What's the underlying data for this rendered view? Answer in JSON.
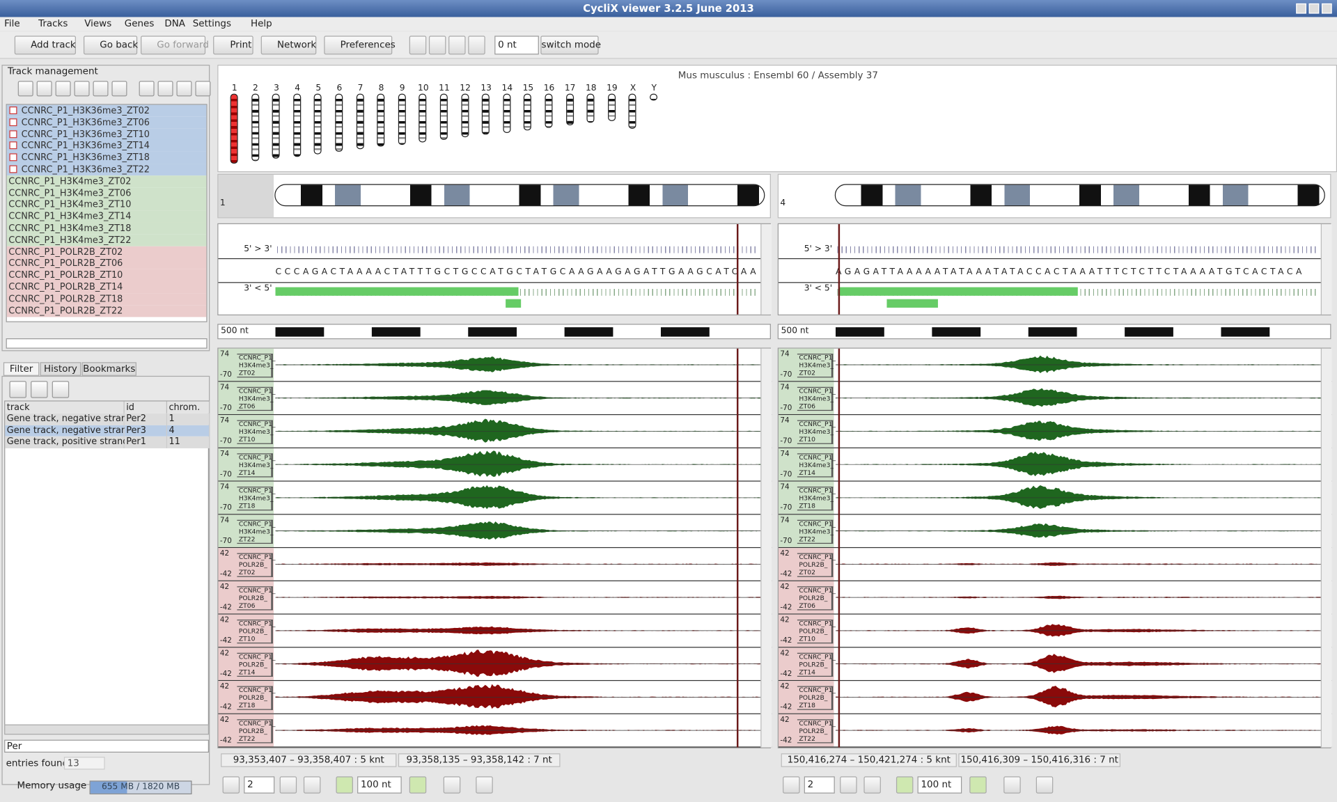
{
  "window": {
    "title": "CycliX viewer 3.2.5 June 2013"
  },
  "menu": [
    "File",
    "Tracks",
    "Views",
    "Genes",
    "DNA",
    "Settings",
    "Help"
  ],
  "toolbar": {
    "buttons": [
      "Add track",
      "Go back",
      "Go forward",
      "Print",
      "Network",
      "Preferences"
    ],
    "position": "0 nt",
    "mode": "switch mode"
  },
  "track_management": {
    "title": "Track management",
    "tracks": [
      "CCNRC_P1_H3K36me3_ZT02",
      "CCNRC_P1_H3K36me3_ZT06",
      "CCNRC_P1_H3K36me3_ZT10",
      "CCNRC_P1_H3K36me3_ZT14",
      "CCNRC_P1_H3K36me3_ZT18",
      "CCNRC_P1_H3K36me3_ZT22",
      "CCNRC_P1_H3K4me3_ZT02",
      "CCNRC_P1_H3K4me3_ZT06",
      "CCNRC_P1_H3K4me3_ZT10",
      "CCNRC_P1_H3K4me3_ZT14",
      "CCNRC_P1_H3K4me3_ZT18",
      "CCNRC_P1_H3K4me3_ZT22",
      "CCNRC_P1_POLR2B_ZT02",
      "CCNRC_P1_POLR2B_ZT06",
      "CCNRC_P1_POLR2B_ZT10",
      "CCNRC_P1_POLR2B_ZT14",
      "CCNRC_P1_POLR2B_ZT18",
      "CCNRC_P1_POLR2B_ZT22"
    ]
  },
  "tabs": [
    "Filter",
    "History",
    "Bookmarks"
  ],
  "filter_table": {
    "columns": [
      "track",
      "id",
      "chrom."
    ],
    "rows": [
      [
        "Gene track, negative strand",
        "Per2",
        "1"
      ],
      [
        "Gene track, negative strand",
        "Per3",
        "4"
      ],
      [
        "Gene track, positive strand",
        "Per1",
        "11"
      ]
    ]
  },
  "filter": {
    "query": "Per",
    "entries_label": "entries found",
    "entries": "13"
  },
  "memory": {
    "label": "Memory usage :",
    "value": "655 MB / 1820 MB"
  },
  "genome": {
    "species": "Mus musculus : Ensembl 60 / Assembly 37",
    "chromosomes": [
      "1",
      "2",
      "3",
      "4",
      "5",
      "6",
      "7",
      "8",
      "9",
      "10",
      "11",
      "12",
      "13",
      "14",
      "15",
      "16",
      "17",
      "18",
      "19",
      "X",
      "Y"
    ]
  },
  "panels": [
    {
      "chromosome": "1",
      "forward": "5' > 3'",
      "reverse": "3' < 5'",
      "sequence": "CCCAGACTAAAACTATTTGCTGCCATGCTATGCAAGAAGAGATTGAAGCATCAA",
      "scale": "500 nt",
      "tracks": [
        {
          "max": "74",
          "min": "-70",
          "label": [
            "CCNRC_P1_",
            "H3K4me3_",
            "ZT02"
          ]
        },
        {
          "max": "74",
          "min": "-70",
          "label": [
            "CCNRC_P1_",
            "H3K4me3_",
            "ZT06"
          ]
        },
        {
          "max": "74",
          "min": "-70",
          "label": [
            "CCNRC_P1_",
            "H3K4me3_",
            "ZT10"
          ]
        },
        {
          "max": "74",
          "min": "-70",
          "label": [
            "CCNRC_P1_",
            "H3K4me3_",
            "ZT14"
          ]
        },
        {
          "max": "74",
          "min": "-70",
          "label": [
            "CCNRC_P1_",
            "H3K4me3_",
            "ZT18"
          ]
        },
        {
          "max": "74",
          "min": "-70",
          "label": [
            "CCNRC_P1_",
            "H3K4me3_",
            "ZT22"
          ]
        },
        {
          "max": "42",
          "min": "-42",
          "label": [
            "CCNRC_P1_",
            "POLR2B_",
            "ZT02"
          ]
        },
        {
          "max": "42",
          "min": "-42",
          "label": [
            "CCNRC_P1_",
            "POLR2B_",
            "ZT06"
          ]
        },
        {
          "max": "42",
          "min": "-42",
          "label": [
            "CCNRC_P1_",
            "POLR2B_",
            "ZT10"
          ]
        },
        {
          "max": "42",
          "min": "-42",
          "label": [
            "CCNRC_P1_",
            "POLR2B_",
            "ZT14"
          ]
        },
        {
          "max": "42",
          "min": "-42",
          "label": [
            "CCNRC_P1_",
            "POLR2B_",
            "ZT18"
          ]
        },
        {
          "max": "42",
          "min": "-42",
          "label": [
            "CCNRC_P1_",
            "POLR2B_",
            "ZT22"
          ]
        }
      ],
      "range": "93,353,407 – 93,358,407 : 5 knt",
      "selection": "93,358,135 – 93,358,142 : 7 nt",
      "zoom": "2",
      "step": "100 nt"
    },
    {
      "chromosome": "4",
      "forward": "5' > 3'",
      "reverse": "3' < 5'",
      "sequence": "AGAGATTAAAAATATAAATATACCACTAAATTTCTCTTCTAAAATGTCACTACA",
      "scale": "500 nt",
      "tracks": [
        {
          "max": "74",
          "min": "-70",
          "label": [
            "CCNRC_P1_",
            "H3K4me3_",
            "ZT02"
          ]
        },
        {
          "max": "74",
          "min": "-70",
          "label": [
            "CCNRC_P1_",
            "H3K4me3_",
            "ZT06"
          ]
        },
        {
          "max": "74",
          "min": "-70",
          "label": [
            "CCNRC_P1_",
            "H3K4me3_",
            "ZT10"
          ]
        },
        {
          "max": "74",
          "min": "-70",
          "label": [
            "CCNRC_P1_",
            "H3K4me3_",
            "ZT14"
          ]
        },
        {
          "max": "74",
          "min": "-70",
          "label": [
            "CCNRC_P1_",
            "H3K4me3_",
            "ZT18"
          ]
        },
        {
          "max": "74",
          "min": "-70",
          "label": [
            "CCNRC_P1_",
            "H3K4me3_",
            "ZT22"
          ]
        },
        {
          "max": "42",
          "min": "-42",
          "label": [
            "CCNRC_P1_",
            "POLR2B_",
            "ZT02"
          ]
        },
        {
          "max": "42",
          "min": "-42",
          "label": [
            "CCNRC_P1_",
            "POLR2B_",
            "ZT06"
          ]
        },
        {
          "max": "42",
          "min": "-42",
          "label": [
            "CCNRC_P1_",
            "POLR2B_",
            "ZT10"
          ]
        },
        {
          "max": "42",
          "min": "-42",
          "label": [
            "CCNRC_P1_",
            "POLR2B_",
            "ZT14"
          ]
        },
        {
          "max": "42",
          "min": "-42",
          "label": [
            "CCNRC_P1_",
            "POLR2B_",
            "ZT18"
          ]
        },
        {
          "max": "42",
          "min": "-42",
          "label": [
            "CCNRC_P1_",
            "POLR2B_",
            "ZT22"
          ]
        }
      ],
      "range": "150,416,274 – 150,421,274 : 5 knt",
      "selection": "150,416,309 – 150,416,316 : 7 nt",
      "zoom": "2",
      "step": "100 nt"
    }
  ]
}
